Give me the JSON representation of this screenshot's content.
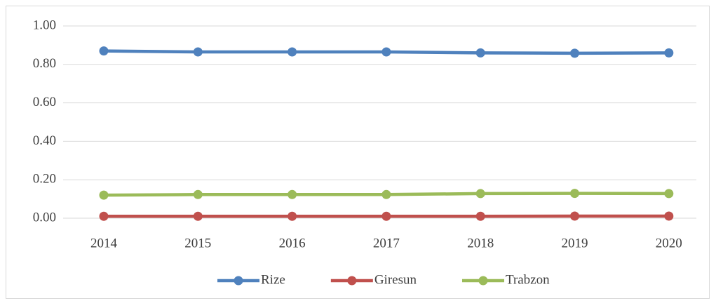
{
  "chart_data": {
    "type": "line",
    "categories": [
      "2014",
      "2015",
      "2016",
      "2017",
      "2018",
      "2019",
      "2020"
    ],
    "series": [
      {
        "name": "Rize",
        "color": "#4f81bd",
        "values": [
          0.87,
          0.865,
          0.865,
          0.865,
          0.86,
          0.858,
          0.86
        ]
      },
      {
        "name": "Giresun",
        "color": "#c0504d",
        "values": [
          0.01,
          0.01,
          0.01,
          0.01,
          0.01,
          0.011,
          0.011
        ]
      },
      {
        "name": "Trabzon",
        "color": "#9bbb59",
        "values": [
          0.12,
          0.123,
          0.123,
          0.123,
          0.128,
          0.129,
          0.128
        ]
      }
    ],
    "ylim": [
      0,
      1
    ],
    "yticks": [
      {
        "value": 0,
        "label": "0.00"
      },
      {
        "value": 0.2,
        "label": "0.20"
      },
      {
        "value": 0.4,
        "label": "0.40"
      },
      {
        "value": 0.6,
        "label": "0.60"
      },
      {
        "value": 0.8,
        "label": "0.80"
      },
      {
        "value": 1,
        "label": "1.00"
      }
    ],
    "grid": true,
    "legend": "bottom"
  }
}
